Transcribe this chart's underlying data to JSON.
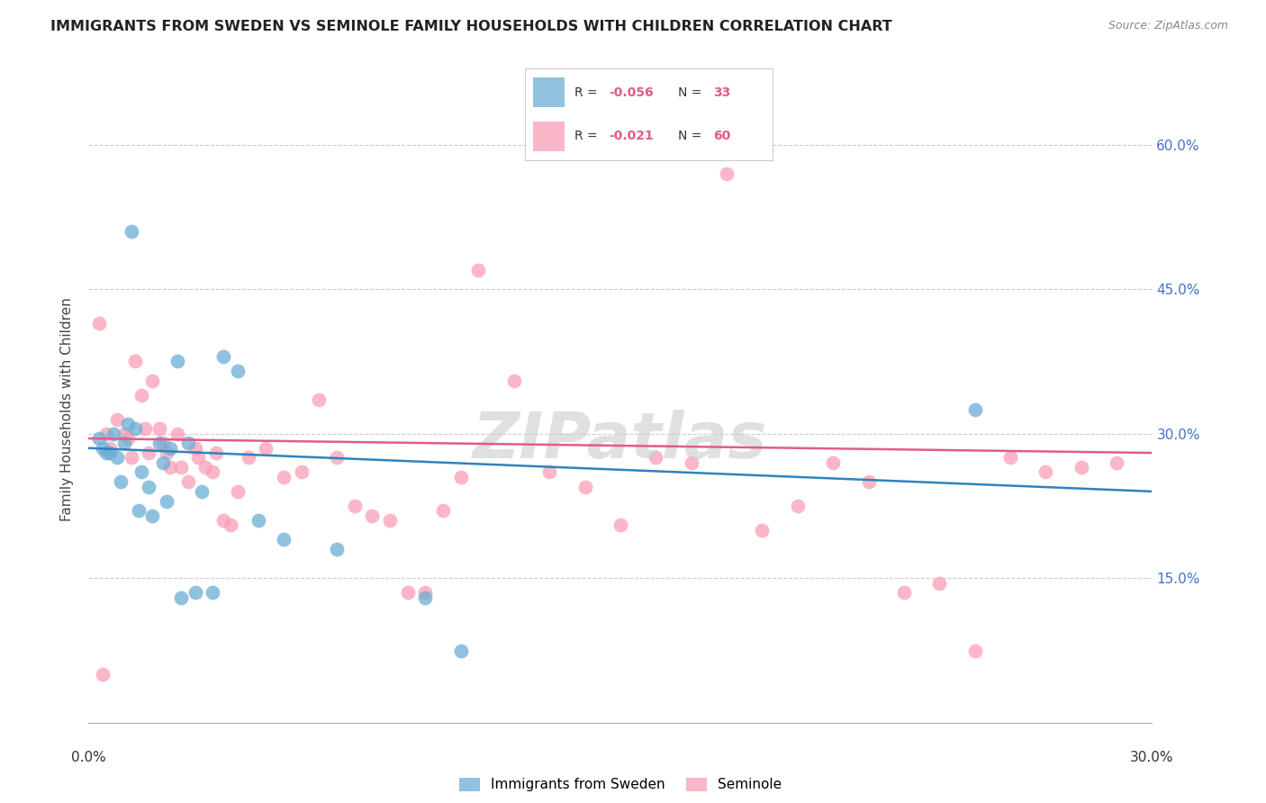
{
  "title": "IMMIGRANTS FROM SWEDEN VS SEMINOLE FAMILY HOUSEHOLDS WITH CHILDREN CORRELATION CHART",
  "source": "Source: ZipAtlas.com",
  "ylabel": "Family Households with Children",
  "xlim": [
    0.0,
    30.0
  ],
  "ylim": [
    0.0,
    65.0
  ],
  "ytick_positions": [
    0,
    15,
    30,
    45,
    60
  ],
  "ytick_labels": [
    "",
    "15.0%",
    "30.0%",
    "45.0%",
    "60.0%"
  ],
  "xtick_positions": [
    0,
    3,
    6,
    9,
    12,
    15,
    18,
    21,
    24,
    27,
    30
  ],
  "blue_color": "#6baed6",
  "pink_color": "#fa9fb5",
  "blue_line_color": "#3182bd",
  "pink_line_color": "#e05c8a",
  "r_blue": "-0.056",
  "n_blue": "33",
  "r_pink": "-0.021",
  "n_pink": "60",
  "watermark": "ZIPatlas",
  "blue_scatter_x": [
    1.2,
    2.5,
    3.8,
    4.2,
    0.3,
    0.5,
    0.7,
    0.8,
    1.0,
    1.1,
    1.3,
    1.5,
    1.7,
    2.0,
    2.1,
    2.3,
    2.8,
    3.2,
    3.5,
    4.8,
    5.5,
    7.0,
    9.5,
    10.5,
    0.4,
    0.6,
    0.9,
    1.4,
    1.8,
    2.2,
    2.6,
    3.0,
    25.0
  ],
  "blue_scatter_y": [
    51.0,
    37.5,
    38.0,
    36.5,
    29.5,
    28.0,
    30.0,
    27.5,
    29.0,
    31.0,
    30.5,
    26.0,
    24.5,
    29.0,
    27.0,
    28.5,
    29.0,
    24.0,
    13.5,
    21.0,
    19.0,
    18.0,
    13.0,
    7.5,
    28.5,
    28.0,
    25.0,
    22.0,
    21.5,
    23.0,
    13.0,
    13.5,
    32.5
  ],
  "pink_scatter_x": [
    0.3,
    0.5,
    0.6,
    0.8,
    1.0,
    1.1,
    1.2,
    1.3,
    1.5,
    1.6,
    1.7,
    1.8,
    2.0,
    2.1,
    2.2,
    2.3,
    2.5,
    2.6,
    2.8,
    3.0,
    3.1,
    3.3,
    3.5,
    3.6,
    3.8,
    4.0,
    4.2,
    4.5,
    5.0,
    5.5,
    6.0,
    6.5,
    7.0,
    7.5,
    8.0,
    8.5,
    9.0,
    9.5,
    10.0,
    10.5,
    11.0,
    12.0,
    13.0,
    14.0,
    15.0,
    16.0,
    17.0,
    18.0,
    19.0,
    20.0,
    21.0,
    22.0,
    23.0,
    24.0,
    25.0,
    26.0,
    27.0,
    28.0,
    29.0,
    0.4
  ],
  "pink_scatter_y": [
    41.5,
    30.0,
    28.5,
    31.5,
    30.0,
    29.5,
    27.5,
    37.5,
    34.0,
    30.5,
    28.0,
    35.5,
    30.5,
    29.0,
    28.0,
    26.5,
    30.0,
    26.5,
    25.0,
    28.5,
    27.5,
    26.5,
    26.0,
    28.0,
    21.0,
    20.5,
    24.0,
    27.5,
    28.5,
    25.5,
    26.0,
    33.5,
    27.5,
    22.5,
    21.5,
    21.0,
    13.5,
    13.5,
    22.0,
    25.5,
    47.0,
    35.5,
    26.0,
    24.5,
    20.5,
    27.5,
    27.0,
    57.0,
    20.0,
    22.5,
    27.0,
    25.0,
    13.5,
    14.5,
    7.5,
    27.5,
    26.0,
    26.5,
    27.0,
    5.0
  ],
  "blue_line_x": [
    0,
    30
  ],
  "blue_line_y": [
    28.5,
    24.0
  ],
  "pink_line_x": [
    0,
    30
  ],
  "pink_line_y": [
    29.5,
    28.0
  ]
}
